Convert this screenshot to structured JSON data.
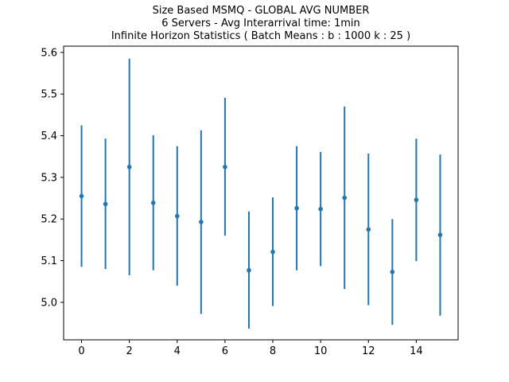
{
  "chart_data": {
    "type": "scatter",
    "title": [
      "Size Based MSMQ - GLOBAL AVG NUMBER",
      "6 Servers -  Avg Interarrival time: 1min",
      "Infinite Horizon Statistics ( Batch Means : b : 1000  k : 25 )"
    ],
    "xlabel": "",
    "ylabel": "",
    "xlim": [
      -0.75,
      15.75
    ],
    "ylim": [
      4.91,
      5.615
    ],
    "xticks": [
      0,
      2,
      4,
      6,
      8,
      10,
      12,
      14
    ],
    "xtick_labels": [
      "0",
      "2",
      "4",
      "6",
      "8",
      "10",
      "12",
      "14"
    ],
    "yticks": [
      5.0,
      5.1,
      5.2,
      5.3,
      5.4,
      5.5,
      5.6
    ],
    "ytick_labels": [
      "5.0",
      "5.1",
      "5.2",
      "5.3",
      "5.4",
      "5.5",
      "5.6"
    ],
    "grid": false,
    "series": [
      {
        "color": "#1f77b4",
        "x": [
          0,
          1,
          2,
          3,
          4,
          5,
          6,
          7,
          8,
          9,
          10,
          11,
          12,
          13,
          14,
          15
        ],
        "y": [
          5.255,
          5.236,
          5.325,
          5.239,
          5.207,
          5.193,
          5.325,
          5.077,
          5.121,
          5.226,
          5.224,
          5.251,
          5.175,
          5.073,
          5.246,
          5.162
        ],
        "err_low": [
          5.085,
          5.08,
          5.065,
          5.077,
          5.04,
          4.972,
          5.16,
          4.937,
          4.991,
          5.077,
          5.087,
          5.032,
          4.993,
          4.946,
          5.099,
          4.968
        ],
        "err_high": [
          5.425,
          5.393,
          5.585,
          5.401,
          5.375,
          5.413,
          5.491,
          5.218,
          5.252,
          5.375,
          5.361,
          5.47,
          5.357,
          5.2,
          5.393,
          5.355
        ]
      }
    ]
  }
}
